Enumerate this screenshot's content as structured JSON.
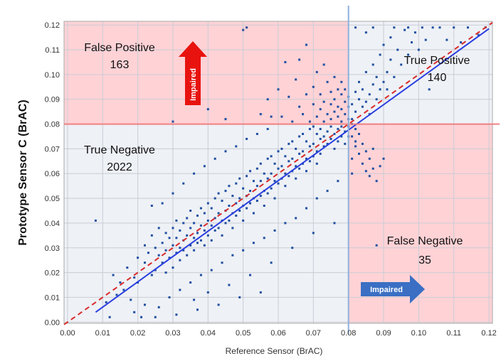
{
  "chart_data": {
    "type": "scatter",
    "xlabel": "Reference Sensor (BrAC)",
    "ylabel": "Prototype Sensor C (BrAC)",
    "xlim": [
      -0.001,
      0.121
    ],
    "ylim": [
      -0.0005,
      0.1215
    ],
    "x_ticks": [
      "0.00",
      "0.01",
      "0.02",
      "0.03",
      "0.04",
      "0.05",
      "0.06",
      "0.07",
      "0.08",
      "0.09",
      "0.10",
      "0.11",
      "0.12"
    ],
    "y_ticks": [
      "0.00",
      "0.01",
      "0.02",
      "0.03",
      "0.04",
      "0.05",
      "0.06",
      "0.07",
      "0.08",
      "0.09",
      "0.10",
      "0.11",
      "0.12"
    ],
    "grid": true,
    "threshold": {
      "x": 0.08,
      "y": 0.08
    },
    "quadrants": {
      "false_positive": {
        "label": "False Positive",
        "count": "163",
        "color": "#ffd2d6"
      },
      "true_positive": {
        "label": "True Positive",
        "count": "140",
        "color": "#eef1f6"
      },
      "true_negative": {
        "label": "True Negative",
        "count": "2022",
        "color": "#eef1f6"
      },
      "false_negative": {
        "label": "False Negative",
        "count": "35",
        "color": "#ffd2d6"
      }
    },
    "arrows": {
      "vertical": {
        "label": "Impaired",
        "color": "#e8130f"
      },
      "horizontal": {
        "label": "Impaired",
        "color": "#3a6fc4"
      }
    },
    "regression_line": {
      "x": [
        0.008,
        0.12
      ],
      "y": [
        0.004,
        0.1185
      ],
      "color": "#2a3fe0"
    },
    "identity_line": {
      "x": [
        -0.001,
        0.121
      ],
      "y": [
        -0.001,
        0.121
      ],
      "color": "#d92b2b",
      "style": "dashed"
    },
    "point_color": "#1f4fa0",
    "threshold_line_colors": {
      "vertical": "#8eb0dd",
      "horizontal": "#f08080"
    },
    "points": [
      [
        0.008,
        0.041
      ],
      [
        0.011,
        0.008
      ],
      [
        0.012,
        0.002
      ],
      [
        0.013,
        0.019
      ],
      [
        0.014,
        0.011
      ],
      [
        0.015,
        0.016
      ],
      [
        0.016,
        0.013
      ],
      [
        0.017,
        0.022
      ],
      [
        0.018,
        0.009
      ],
      [
        0.019,
        0.018
      ],
      [
        0.02,
        0.026
      ],
      [
        0.02,
        0.016
      ],
      [
        0.021,
        0.002
      ],
      [
        0.022,
        0.024
      ],
      [
        0.022,
        0.031
      ],
      [
        0.023,
        0.028
      ],
      [
        0.024,
        0.019
      ],
      [
        0.024,
        0.035
      ],
      [
        0.025,
        0.021
      ],
      [
        0.025,
        0.03
      ],
      [
        0.026,
        0.027
      ],
      [
        0.026,
        0.038
      ],
      [
        0.027,
        0.024
      ],
      [
        0.027,
        0.032
      ],
      [
        0.028,
        0.029
      ],
      [
        0.028,
        0.036
      ],
      [
        0.028,
        0.02
      ],
      [
        0.029,
        0.034
      ],
      [
        0.029,
        0.026
      ],
      [
        0.03,
        0.031
      ],
      [
        0.03,
        0.038
      ],
      [
        0.03,
        0.022
      ],
      [
        0.031,
        0.028
      ],
      [
        0.031,
        0.034
      ],
      [
        0.031,
        0.041
      ],
      [
        0.032,
        0.03
      ],
      [
        0.032,
        0.037
      ],
      [
        0.032,
        0.025
      ],
      [
        0.033,
        0.033
      ],
      [
        0.033,
        0.04
      ],
      [
        0.033,
        0.029
      ],
      [
        0.034,
        0.035
      ],
      [
        0.034,
        0.042
      ],
      [
        0.034,
        0.027
      ],
      [
        0.035,
        0.038
      ],
      [
        0.035,
        0.031
      ],
      [
        0.035,
        0.045
      ],
      [
        0.036,
        0.034
      ],
      [
        0.036,
        0.04
      ],
      [
        0.036,
        0.029
      ],
      [
        0.037,
        0.036
      ],
      [
        0.037,
        0.043
      ],
      [
        0.037,
        0.032
      ],
      [
        0.038,
        0.039
      ],
      [
        0.038,
        0.046
      ],
      [
        0.038,
        0.033
      ],
      [
        0.039,
        0.037
      ],
      [
        0.039,
        0.044
      ],
      [
        0.039,
        0.031
      ],
      [
        0.04,
        0.041
      ],
      [
        0.04,
        0.048
      ],
      [
        0.04,
        0.035
      ],
      [
        0.041,
        0.039
      ],
      [
        0.041,
        0.046
      ],
      [
        0.041,
        0.033
      ],
      [
        0.042,
        0.042
      ],
      [
        0.042,
        0.05
      ],
      [
        0.042,
        0.037
      ],
      [
        0.043,
        0.044
      ],
      [
        0.043,
        0.052
      ],
      [
        0.043,
        0.038
      ],
      [
        0.044,
        0.041
      ],
      [
        0.044,
        0.049
      ],
      [
        0.044,
        0.035
      ],
      [
        0.045,
        0.045
      ],
      [
        0.045,
        0.053
      ],
      [
        0.045,
        0.04
      ],
      [
        0.046,
        0.047
      ],
      [
        0.046,
        0.055
      ],
      [
        0.046,
        0.041
      ],
      [
        0.047,
        0.044
      ],
      [
        0.047,
        0.051
      ],
      [
        0.047,
        0.038
      ],
      [
        0.048,
        0.048
      ],
      [
        0.048,
        0.056
      ],
      [
        0.048,
        0.043
      ],
      [
        0.049,
        0.05
      ],
      [
        0.049,
        0.058
      ],
      [
        0.049,
        0.045
      ],
      [
        0.05,
        0.047
      ],
      [
        0.05,
        0.054
      ],
      [
        0.05,
        0.041
      ],
      [
        0.051,
        0.051
      ],
      [
        0.051,
        0.059
      ],
      [
        0.051,
        0.046
      ],
      [
        0.052,
        0.053
      ],
      [
        0.052,
        0.061
      ],
      [
        0.052,
        0.048
      ],
      [
        0.053,
        0.05
      ],
      [
        0.053,
        0.057
      ],
      [
        0.053,
        0.044
      ],
      [
        0.054,
        0.055
      ],
      [
        0.054,
        0.062
      ],
      [
        0.054,
        0.049
      ],
      [
        0.055,
        0.057
      ],
      [
        0.055,
        0.064
      ],
      [
        0.055,
        0.051
      ],
      [
        0.056,
        0.053
      ],
      [
        0.056,
        0.06
      ],
      [
        0.056,
        0.047
      ],
      [
        0.057,
        0.058
      ],
      [
        0.057,
        0.066
      ],
      [
        0.057,
        0.052
      ],
      [
        0.058,
        0.06
      ],
      [
        0.058,
        0.067
      ],
      [
        0.058,
        0.054
      ],
      [
        0.059,
        0.057
      ],
      [
        0.059,
        0.064
      ],
      [
        0.059,
        0.05
      ],
      [
        0.06,
        0.062
      ],
      [
        0.06,
        0.069
      ],
      [
        0.06,
        0.056
      ],
      [
        0.061,
        0.063
      ],
      [
        0.061,
        0.07
      ],
      [
        0.061,
        0.058
      ],
      [
        0.062,
        0.06
      ],
      [
        0.062,
        0.067
      ],
      [
        0.062,
        0.055
      ],
      [
        0.063,
        0.065
      ],
      [
        0.063,
        0.072
      ],
      [
        0.063,
        0.059
      ],
      [
        0.064,
        0.066
      ],
      [
        0.064,
        0.073
      ],
      [
        0.064,
        0.061
      ],
      [
        0.065,
        0.063
      ],
      [
        0.065,
        0.07
      ],
      [
        0.065,
        0.058
      ],
      [
        0.066,
        0.068
      ],
      [
        0.066,
        0.075
      ],
      [
        0.066,
        0.062
      ],
      [
        0.067,
        0.069
      ],
      [
        0.067,
        0.076
      ],
      [
        0.067,
        0.064
      ],
      [
        0.068,
        0.066
      ],
      [
        0.068,
        0.073
      ],
      [
        0.068,
        0.061
      ],
      [
        0.069,
        0.071
      ],
      [
        0.069,
        0.078
      ],
      [
        0.069,
        0.065
      ],
      [
        0.07,
        0.072
      ],
      [
        0.07,
        0.079
      ],
      [
        0.07,
        0.067
      ],
      [
        0.071,
        0.069
      ],
      [
        0.071,
        0.076
      ],
      [
        0.071,
        0.064
      ],
      [
        0.072,
        0.074
      ],
      [
        0.072,
        0.078
      ],
      [
        0.072,
        0.068
      ],
      [
        0.073,
        0.075
      ],
      [
        0.073,
        0.071
      ],
      [
        0.074,
        0.077
      ],
      [
        0.074,
        0.072
      ],
      [
        0.075,
        0.074
      ],
      [
        0.075,
        0.079
      ],
      [
        0.076,
        0.076
      ],
      [
        0.076,
        0.07
      ],
      [
        0.077,
        0.078
      ],
      [
        0.077,
        0.073
      ],
      [
        0.078,
        0.075
      ],
      [
        0.078,
        0.079
      ],
      [
        0.079,
        0.077
      ],
      [
        0.079,
        0.072
      ],
      [
        0.08,
        0.079
      ],
      [
        0.08,
        0.075
      ],
      [
        0.024,
        0.047
      ],
      [
        0.027,
        0.048
      ],
      [
        0.03,
        0.052
      ],
      [
        0.033,
        0.056
      ],
      [
        0.036,
        0.06
      ],
      [
        0.039,
        0.063
      ],
      [
        0.042,
        0.066
      ],
      [
        0.045,
        0.069
      ],
      [
        0.048,
        0.071
      ],
      [
        0.051,
        0.074
      ],
      [
        0.054,
        0.076
      ],
      [
        0.057,
        0.078
      ],
      [
        0.026,
        0.006
      ],
      [
        0.029,
        0.01
      ],
      [
        0.032,
        0.013
      ],
      [
        0.035,
        0.016
      ],
      [
        0.038,
        0.019
      ],
      [
        0.041,
        0.021
      ],
      [
        0.044,
        0.024
      ],
      [
        0.047,
        0.027
      ],
      [
        0.05,
        0.029
      ],
      [
        0.053,
        0.032
      ],
      [
        0.056,
        0.034
      ],
      [
        0.059,
        0.037
      ],
      [
        0.062,
        0.04
      ],
      [
        0.065,
        0.042
      ],
      [
        0.068,
        0.046
      ],
      [
        0.071,
        0.05
      ],
      [
        0.074,
        0.053
      ],
      [
        0.077,
        0.057
      ],
      [
        0.025,
        0.002
      ],
      [
        0.031,
        0.003
      ],
      [
        0.037,
        0.005
      ],
      [
        0.043,
        0.007
      ],
      [
        0.049,
        0.01
      ],
      [
        0.055,
        0.012
      ],
      [
        0.036,
        0.009
      ],
      [
        0.04,
        0.012
      ],
      [
        0.046,
        0.015
      ],
      [
        0.052,
        0.019
      ],
      [
        0.058,
        0.024
      ],
      [
        0.064,
        0.03
      ],
      [
        0.07,
        0.036
      ],
      [
        0.076,
        0.04
      ],
      [
        0.019,
        0.004
      ],
      [
        0.022,
        0.007
      ],
      [
        0.04,
        0.086
      ],
      [
        0.05,
        0.118
      ],
      [
        0.051,
        0.119
      ],
      [
        0.055,
        0.084
      ],
      [
        0.058,
        0.083
      ],
      [
        0.06,
        0.094
      ],
      [
        0.061,
        0.083
      ],
      [
        0.062,
        0.105
      ],
      [
        0.063,
        0.091
      ],
      [
        0.064,
        0.081
      ],
      [
        0.065,
        0.098
      ],
      [
        0.066,
        0.087
      ],
      [
        0.067,
        0.084
      ],
      [
        0.068,
        0.092
      ],
      [
        0.069,
        0.081
      ],
      [
        0.07,
        0.095
      ],
      [
        0.07,
        0.088
      ],
      [
        0.071,
        0.083
      ],
      [
        0.071,
        0.101
      ],
      [
        0.072,
        0.086
      ],
      [
        0.072,
        0.092
      ],
      [
        0.073,
        0.081
      ],
      [
        0.073,
        0.089
      ],
      [
        0.074,
        0.097
      ],
      [
        0.074,
        0.084
      ],
      [
        0.075,
        0.088
      ],
      [
        0.075,
        0.093
      ],
      [
        0.075,
        0.082
      ],
      [
        0.076,
        0.085
      ],
      [
        0.076,
        0.09
      ],
      [
        0.076,
        0.099
      ],
      [
        0.077,
        0.083
      ],
      [
        0.077,
        0.087
      ],
      [
        0.077,
        0.094
      ],
      [
        0.078,
        0.081
      ],
      [
        0.078,
        0.086
      ],
      [
        0.078,
        0.092
      ],
      [
        0.078,
        0.097
      ],
      [
        0.079,
        0.084
      ],
      [
        0.079,
        0.089
      ],
      [
        0.079,
        0.094
      ],
      [
        0.08,
        0.082
      ],
      [
        0.08,
        0.087
      ],
      [
        0.08,
        0.091
      ],
      [
        0.03,
        0.081
      ],
      [
        0.045,
        0.082
      ],
      [
        0.057,
        0.09
      ],
      [
        0.066,
        0.106
      ],
      [
        0.068,
        0.112
      ],
      [
        0.073,
        0.104
      ],
      [
        0.081,
        0.082
      ],
      [
        0.081,
        0.088
      ],
      [
        0.082,
        0.093
      ],
      [
        0.082,
        0.085
      ],
      [
        0.083,
        0.09
      ],
      [
        0.083,
        0.097
      ],
      [
        0.084,
        0.087
      ],
      [
        0.084,
        0.094
      ],
      [
        0.085,
        0.089
      ],
      [
        0.085,
        0.101
      ],
      [
        0.086,
        0.092
      ],
      [
        0.086,
        0.084
      ],
      [
        0.087,
        0.096
      ],
      [
        0.087,
        0.104
      ],
      [
        0.088,
        0.09
      ],
      [
        0.088,
        0.099
      ],
      [
        0.089,
        0.094
      ],
      [
        0.089,
        0.108
      ],
      [
        0.09,
        0.097
      ],
      [
        0.09,
        0.112
      ],
      [
        0.091,
        0.101
      ],
      [
        0.091,
        0.094
      ],
      [
        0.092,
        0.106
      ],
      [
        0.092,
        0.115
      ],
      [
        0.093,
        0.099
      ],
      [
        0.094,
        0.11
      ],
      [
        0.095,
        0.104
      ],
      [
        0.096,
        0.118
      ],
      [
        0.097,
        0.108
      ],
      [
        0.098,
        0.113
      ],
      [
        0.099,
        0.117
      ],
      [
        0.1,
        0.11
      ],
      [
        0.101,
        0.119
      ],
      [
        0.102,
        0.114
      ],
      [
        0.103,
        0.094
      ],
      [
        0.104,
        0.119
      ],
      [
        0.106,
        0.119
      ],
      [
        0.108,
        0.114
      ],
      [
        0.11,
        0.119
      ],
      [
        0.112,
        0.113
      ],
      [
        0.114,
        0.119
      ],
      [
        0.117,
        0.116
      ],
      [
        0.119,
        0.119
      ],
      [
        0.082,
        0.119
      ],
      [
        0.085,
        0.117
      ],
      [
        0.087,
        0.119
      ],
      [
        0.093,
        0.119
      ],
      [
        0.097,
        0.119
      ],
      [
        0.081,
        0.08
      ],
      [
        0.082,
        0.078
      ],
      [
        0.081,
        0.075
      ],
      [
        0.082,
        0.071
      ],
      [
        0.083,
        0.076
      ],
      [
        0.083,
        0.068
      ],
      [
        0.084,
        0.072
      ],
      [
        0.084,
        0.064
      ],
      [
        0.085,
        0.069
      ],
      [
        0.085,
        0.061
      ],
      [
        0.086,
        0.066
      ],
      [
        0.086,
        0.059
      ],
      [
        0.082,
        0.073
      ],
      [
        0.081,
        0.066
      ],
      [
        0.087,
        0.062
      ],
      [
        0.088,
        0.057
      ],
      [
        0.088,
        0.031
      ],
      [
        0.087,
        0.07
      ],
      [
        0.089,
        0.063
      ],
      [
        0.09,
        0.066
      ],
      [
        0.081,
        0.06
      ]
    ]
  }
}
